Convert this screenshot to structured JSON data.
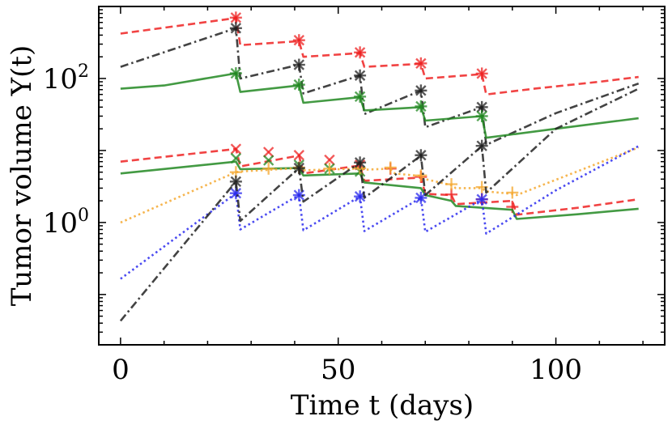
{
  "chart_data": {
    "type": "line",
    "title": "",
    "xlabel": "Time t (days)",
    "ylabel": "Tumor volume Y(t)",
    "xlim": [
      -5,
      125
    ],
    "ylim": [
      0.02,
      1000
    ],
    "yscale": "log",
    "x_ticks": [
      {
        "value": 0,
        "label": "0"
      },
      {
        "value": 50,
        "label": "50"
      },
      {
        "value": 100,
        "label": "100"
      }
    ],
    "y_ticks": [
      {
        "value": 1,
        "label": "10",
        "exp": "0"
      },
      {
        "value": 100,
        "label": "10",
        "exp": "2"
      }
    ],
    "grid": false,
    "legend": "none",
    "series": [
      {
        "color": "#ee2222",
        "dash": "dashed",
        "points": [
          [
            0,
            420
          ],
          [
            26.5,
            690
          ],
          [
            27.5,
            290
          ],
          [
            41,
            330
          ],
          [
            42,
            200
          ],
          [
            55,
            225
          ],
          [
            56,
            145
          ],
          [
            69,
            160
          ],
          [
            70,
            100
          ],
          [
            83,
            115
          ],
          [
            84,
            60
          ],
          [
            95,
            72
          ],
          [
            110,
            90
          ],
          [
            119,
            105
          ]
        ],
        "markers": [
          [
            26.5,
            700
          ],
          [
            41,
            340
          ],
          [
            55,
            230
          ],
          [
            69,
            162
          ],
          [
            83,
            117
          ]
        ],
        "marker": "asterisk"
      },
      {
        "color": "#222222",
        "dash": "dashdot",
        "points": [
          [
            0,
            145
          ],
          [
            26.5,
            500
          ],
          [
            27.5,
            100
          ],
          [
            41,
            155
          ],
          [
            42,
            62
          ],
          [
            55,
            110
          ],
          [
            56,
            32
          ],
          [
            69,
            68
          ],
          [
            70,
            21
          ],
          [
            83,
            40
          ],
          [
            84,
            12
          ],
          [
            100,
            33
          ],
          [
            119,
            85
          ]
        ],
        "markers": [
          [
            26.5,
            500
          ],
          [
            41,
            155
          ],
          [
            55,
            110
          ],
          [
            69,
            68
          ],
          [
            83,
            40
          ]
        ],
        "marker": "asterisk"
      },
      {
        "color": "#228822",
        "dash": "solid",
        "points": [
          [
            0,
            72
          ],
          [
            10,
            80
          ],
          [
            26.5,
            118
          ],
          [
            27.5,
            65
          ],
          [
            41,
            80
          ],
          [
            42,
            46
          ],
          [
            55,
            55
          ],
          [
            56,
            36
          ],
          [
            69,
            40
          ],
          [
            70,
            26
          ],
          [
            83,
            30
          ],
          [
            84,
            15
          ],
          [
            100,
            20
          ],
          [
            119,
            28
          ]
        ],
        "markers": [
          [
            26.5,
            118
          ],
          [
            41,
            82
          ],
          [
            55,
            56
          ],
          [
            69,
            41
          ],
          [
            83,
            30
          ]
        ],
        "marker": "asterisk"
      },
      {
        "color": "#ee2222",
        "dash": "dashed",
        "points": [
          [
            0,
            7
          ],
          [
            26.5,
            10.5
          ],
          [
            27.5,
            6.0
          ],
          [
            41,
            8.5
          ],
          [
            42,
            4.8
          ],
          [
            55,
            6.2
          ],
          [
            56,
            3.8
          ],
          [
            69,
            4.2
          ],
          [
            70,
            2.5
          ],
          [
            76,
            2.4
          ],
          [
            77,
            1.8
          ],
          [
            90,
            2.0
          ],
          [
            91,
            1.28
          ],
          [
            105,
            1.6
          ],
          [
            119,
            2.1
          ]
        ],
        "markers": [
          [
            26.5,
            10.5
          ],
          [
            34,
            9.5
          ],
          [
            41,
            8.6
          ],
          [
            48,
            7.4
          ],
          [
            55,
            6.3
          ]
        ],
        "marker": "x"
      },
      {
        "color": "#ee2222",
        "dash": "dashed",
        "points": [],
        "markers": [
          [
            62,
            5.6
          ],
          [
            69,
            4.3
          ],
          [
            76,
            2.45
          ],
          [
            83,
            2.1
          ],
          [
            90,
            1.65
          ]
        ],
        "marker": "plus"
      },
      {
        "color": "#228822",
        "dash": "solid",
        "points": [
          [
            0,
            4.8
          ],
          [
            26.5,
            7.0
          ],
          [
            27.5,
            5.5
          ],
          [
            41,
            5.7
          ],
          [
            42,
            4.5
          ],
          [
            55,
            4.8
          ],
          [
            56,
            3.6
          ],
          [
            69,
            3.0
          ],
          [
            70,
            2.4
          ],
          [
            76,
            2.0
          ],
          [
            77,
            1.7
          ],
          [
            90,
            1.5
          ],
          [
            91,
            1.12
          ],
          [
            105,
            1.3
          ],
          [
            119,
            1.55
          ]
        ],
        "markers": [
          [
            26.5,
            7.8
          ],
          [
            34,
            7.3
          ],
          [
            41,
            6.3
          ],
          [
            48,
            5.6
          ],
          [
            55,
            5.1
          ]
        ],
        "marker": "x"
      },
      {
        "color": "#f4a830",
        "dash": "dotted",
        "points": [
          [
            0,
            1.0
          ],
          [
            26.5,
            5.0
          ],
          [
            27.5,
            5.1
          ],
          [
            41,
            5.7
          ],
          [
            42,
            5.3
          ],
          [
            55,
            5.6
          ],
          [
            56,
            5.4
          ],
          [
            62,
            5.6
          ],
          [
            63,
            4.8
          ],
          [
            69,
            4.4
          ],
          [
            70,
            4.0
          ],
          [
            76,
            3.3
          ],
          [
            77,
            3.0
          ],
          [
            83,
            3.0
          ],
          [
            84,
            2.7
          ],
          [
            90,
            2.5
          ],
          [
            91,
            2.4
          ],
          [
            119,
            11
          ]
        ],
        "markers": [
          [
            26.5,
            5.0
          ],
          [
            34,
            5.6
          ],
          [
            41,
            5.8
          ],
          [
            48,
            5.6
          ],
          [
            55,
            5.7
          ],
          [
            62,
            5.8
          ],
          [
            69,
            4.5
          ],
          [
            76,
            3.4
          ],
          [
            83,
            3.1
          ],
          [
            90,
            2.6
          ]
        ],
        "marker": "plus"
      },
      {
        "color": "#2a2aee",
        "dash": "dotted",
        "points": [
          [
            0,
            0.165
          ],
          [
            26.5,
            2.55
          ],
          [
            27.5,
            0.8
          ],
          [
            41,
            2.4
          ],
          [
            42,
            0.78
          ],
          [
            55,
            2.3
          ],
          [
            56,
            0.76
          ],
          [
            69,
            2.2
          ],
          [
            70,
            0.74
          ],
          [
            83,
            2.1
          ],
          [
            84,
            0.7
          ],
          [
            100,
            2.8
          ],
          [
            119,
            11.5
          ]
        ],
        "markers": [
          [
            26.5,
            2.55
          ],
          [
            41,
            2.4
          ],
          [
            55,
            2.3
          ],
          [
            69,
            2.2
          ],
          [
            83,
            2.1
          ]
        ],
        "marker": "asterisk"
      },
      {
        "color": "#222222",
        "dash": "dashdot",
        "points": [
          [
            0,
            0.043
          ],
          [
            26.5,
            3.7
          ],
          [
            27.5,
            1.05
          ],
          [
            41,
            5.7
          ],
          [
            42,
            1.95
          ],
          [
            55,
            6.8
          ],
          [
            56,
            2.2
          ],
          [
            69,
            8.5
          ],
          [
            70,
            2.4
          ],
          [
            83,
            11.5
          ],
          [
            84,
            2.6
          ],
          [
            100,
            20
          ],
          [
            119,
            72
          ]
        ],
        "markers": [
          [
            26.5,
            3.7
          ],
          [
            41,
            5.7
          ],
          [
            55,
            6.8
          ],
          [
            69,
            8.6
          ],
          [
            83,
            11.6
          ]
        ],
        "marker": "asterisk"
      }
    ]
  }
}
